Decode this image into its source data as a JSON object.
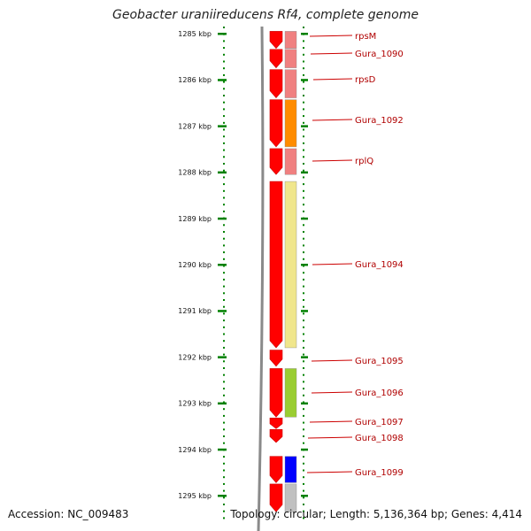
{
  "title": "Geobacter uraniireducens Rf4, complete genome",
  "footer": {
    "accession": "Accession: NC_009483",
    "summary": "Topology: circular; Length: 5,136,364 bp; Genes: 4,414"
  },
  "colors": {
    "gene_arrow": "#ff0000",
    "label": "#b00000",
    "tick": "#008000",
    "backbone": "#8a8a8a"
  },
  "ruler": {
    "unit": "kbp",
    "ticks": [
      {
        "kbp": 1285,
        "label": "1285 kbp"
      },
      {
        "kbp": 1286,
        "label": "1286 kbp"
      },
      {
        "kbp": 1287,
        "label": "1287 kbp"
      },
      {
        "kbp": 1288,
        "label": "1288 kbp"
      },
      {
        "kbp": 1289,
        "label": "1289 kbp"
      },
      {
        "kbp": 1290,
        "label": "1290 kbp"
      },
      {
        "kbp": 1291,
        "label": "1291 kbp"
      },
      {
        "kbp": 1292,
        "label": "1292 kbp"
      },
      {
        "kbp": 1293,
        "label": "1293 kbp"
      },
      {
        "kbp": 1294,
        "label": "1294 kbp"
      },
      {
        "kbp": 1295,
        "label": "1295 kbp"
      }
    ]
  },
  "genes": [
    {
      "label": "rpsM",
      "start_kbp": 1284.95,
      "end_kbp": 1285.32,
      "category_color": "#f08080"
    },
    {
      "label": "Gura_1090",
      "start_kbp": 1285.34,
      "end_kbp": 1285.74,
      "category_color": "#f08080"
    },
    {
      "label": "rpsD",
      "start_kbp": 1285.78,
      "end_kbp": 1286.39,
      "category_color": "#f08080"
    },
    {
      "label": "Gura_1092",
      "start_kbp": 1286.43,
      "end_kbp": 1287.45,
      "category_color": "#ff8c00"
    },
    {
      "label": "rplQ",
      "start_kbp": 1287.49,
      "end_kbp": 1288.05,
      "category_color": "#f08080"
    },
    {
      "label": "Gura_1094",
      "start_kbp": 1288.2,
      "end_kbp": 1291.8,
      "category_color": "#f0e68c"
    },
    {
      "label": "Gura_1095",
      "start_kbp": 1291.85,
      "end_kbp": 1292.2,
      "category_color": "#ffffff"
    },
    {
      "label": "Gura_1096",
      "start_kbp": 1292.25,
      "end_kbp": 1293.3,
      "category_color": "#9acd32"
    },
    {
      "label": "Gura_1097",
      "start_kbp": 1293.32,
      "end_kbp": 1293.55,
      "category_color": "#ffffff"
    },
    {
      "label": "Gura_1098",
      "start_kbp": 1293.57,
      "end_kbp": 1293.85,
      "category_color": "#ffffff"
    },
    {
      "label": "Gura_1099",
      "start_kbp": 1294.15,
      "end_kbp": 1294.72,
      "category_color": "#0000ff"
    },
    {
      "label": "",
      "start_kbp": 1294.75,
      "end_kbp": 1295.35,
      "category_color": "#c0c0c0"
    }
  ]
}
